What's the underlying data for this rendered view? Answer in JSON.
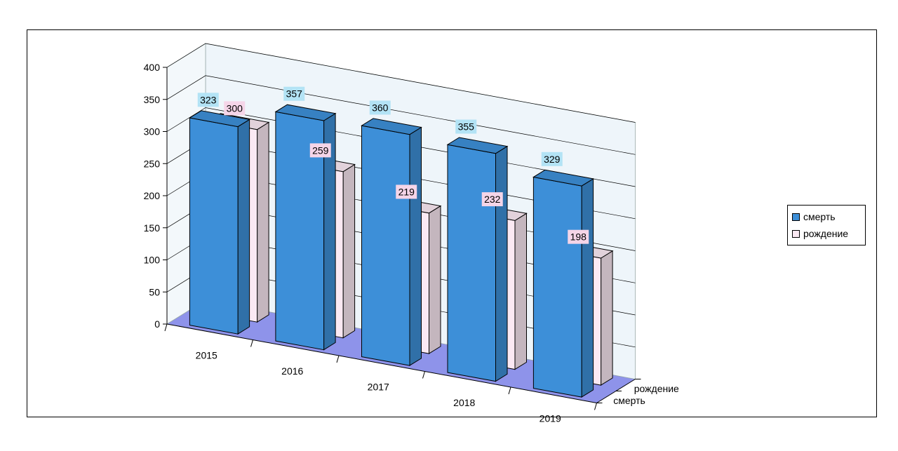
{
  "chart_data": {
    "type": "bar",
    "categories": [
      "2015",
      "2016",
      "2017",
      "2018",
      "2019"
    ],
    "series": [
      {
        "name": "смерть",
        "values": [
          323,
          357,
          360,
          355,
          329
        ],
        "color": "#3d8fd8",
        "label_bg": "#b3e3f5"
      },
      {
        "name": "рождение",
        "values": [
          300,
          259,
          219,
          232,
          198
        ],
        "color": "#fbe9f3",
        "label_bg": "#f5d5e8"
      }
    ],
    "ylim": [
      0,
      400
    ],
    "yticks": [
      "0",
      "50",
      "100",
      "150",
      "200",
      "250",
      "300",
      "350",
      "400"
    ],
    "depth_labels": [
      "рождение",
      "смерть"
    ],
    "grid": true,
    "legend_position": "right",
    "title": "",
    "xlabel": "",
    "ylabel": "",
    "colors": {
      "floor": "#8e93ea",
      "back_wall": "#eef5fa",
      "side_wall": "#f3f8fb"
    }
  }
}
